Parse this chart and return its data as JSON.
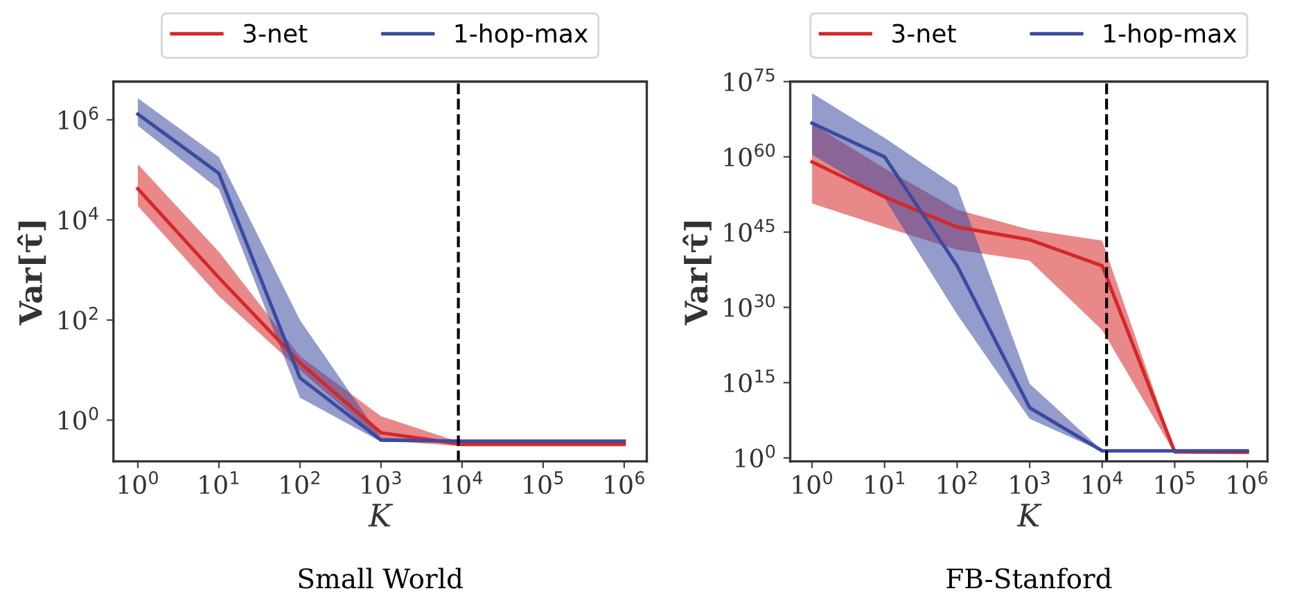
{
  "chart_data": [
    {
      "type": "line",
      "title": "Small World",
      "xlabel": "K",
      "ylabel": "Var[τ̂]",
      "x": [
        1,
        10,
        100,
        1000,
        10000,
        100000,
        1000000
      ],
      "log": "xy",
      "xlim": [
        0.5,
        1900000
      ],
      "ylim": [
        0.15,
        5800000
      ],
      "xticks": [
        {
          "value": 1,
          "label": "10$^{0}$"
        },
        {
          "value": 10,
          "label": "10$^{1}$"
        },
        {
          "value": 100,
          "label": "10$^{2}$"
        },
        {
          "value": 1000,
          "label": "10$^{3}$"
        },
        {
          "value": 10000,
          "label": "10$^{4}$"
        },
        {
          "value": 100000,
          "label": "10$^{5}$"
        },
        {
          "value": 1000000,
          "label": "10$^{6}$"
        }
      ],
      "yticks": [
        {
          "value": 1,
          "label": "10$^{0}$"
        },
        {
          "value": 100,
          "label": "10$^{2}$"
        },
        {
          "value": 10000,
          "label": "10$^{4}$"
        },
        {
          "value": 1000000,
          "label": "10$^{6}$"
        }
      ],
      "grid": false,
      "legend": "top",
      "line_style": "solid",
      "marker": "none",
      "ref_lines": [
        {
          "axis": "x",
          "value": 9000,
          "color": "#000000",
          "line_style": "dashed"
        }
      ],
      "series": [
        {
          "name": "3-net",
          "color": "#d62728",
          "values": [
            42000,
            700,
            14,
            0.56,
            0.33,
            0.33,
            0.33
          ],
          "lower": [
            19000,
            300,
            10,
            0.4,
            0.3,
            0.3,
            0.3
          ],
          "upper": [
            130000,
            2300,
            19,
            1.2,
            0.35,
            0.35,
            0.35
          ]
        },
        {
          "name": "1-hop-max",
          "color": "#3b4aa0",
          "values": [
            1300000,
            85000,
            7,
            0.4,
            0.38,
            0.38,
            0.38
          ],
          "lower": [
            760000,
            41000,
            2.8,
            0.37,
            0.37,
            0.37,
            0.37
          ],
          "upper": [
            2700000,
            180000,
            100,
            0.45,
            0.4,
            0.4,
            0.4
          ]
        }
      ]
    },
    {
      "type": "line",
      "title": "FB-Stanford",
      "xlabel": "K",
      "ylabel": "Var[τ̂]",
      "x": [
        1,
        10,
        100,
        1000,
        10000,
        100000,
        1000000
      ],
      "log": "xy",
      "xlim": [
        0.5,
        1900000
      ],
      "ylim": [
        0.2,
        1e+75
      ],
      "xticks": [
        {
          "value": 1,
          "label": "10$^{0}$"
        },
        {
          "value": 10,
          "label": "10$^{1}$"
        },
        {
          "value": 100,
          "label": "10$^{2}$"
        },
        {
          "value": 1000,
          "label": "10$^{3}$"
        },
        {
          "value": 10000,
          "label": "10$^{4}$"
        },
        {
          "value": 100000,
          "label": "10$^{5}$"
        },
        {
          "value": 1000000,
          "label": "10$^{6}$"
        }
      ],
      "yticks": [
        {
          "value": 1,
          "label": "10$^{0}$"
        },
        {
          "value": 1000000000000000.0,
          "label": "10$^{15}$"
        },
        {
          "value": 1e+30,
          "label": "10$^{30}$"
        },
        {
          "value": 1e+45,
          "label": "10$^{45}$"
        },
        {
          "value": 1e+60,
          "label": "10$^{60}$"
        },
        {
          "value": 1e+75,
          "label": "10$^{75}$"
        }
      ],
      "grid": false,
      "legend": "top",
      "line_style": "solid",
      "marker": "none",
      "ref_lines": [
        {
          "axis": "x",
          "value": 11500,
          "color": "#000000",
          "line_style": "dashed"
        }
      ],
      "series": [
        {
          "name": "3-net",
          "color": "#d62728",
          "values": [
            1e+59,
            1e+52,
            1e+46,
            3e+43,
            2e+38,
            16,
            13
          ],
          "lower": [
            5e+50,
            1e+46,
            3e+41,
            2e+39,
            3e+25,
            8,
            8
          ],
          "upper": [
            4e+66,
            5e+57,
            3e+49,
            3e+45,
            2e+43,
            25,
            20
          ]
        },
        {
          "name": "1-hop-max",
          "color": "#3b4aa0",
          "values": [
            5e+66,
            1e+60,
            2e+38,
            10000000000.0,
            25,
            25,
            25
          ],
          "lower": [
            3e+60,
            5e+51,
            4e+28,
            60000000.0,
            20,
            20,
            20
          ],
          "upper": [
            5e+72,
            6e+63,
            1e+54,
            600000000000000.0,
            30,
            30,
            30
          ]
        }
      ]
    }
  ]
}
